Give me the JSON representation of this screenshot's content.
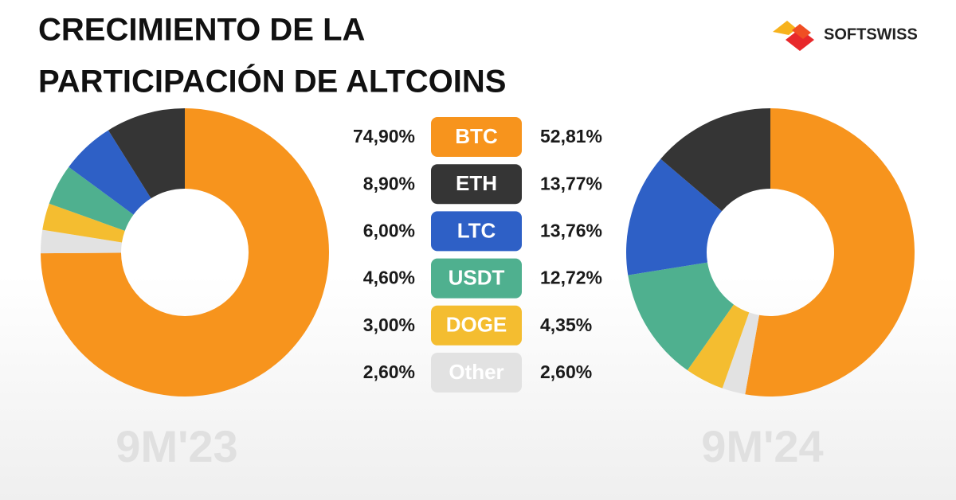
{
  "header": {
    "title_lines": [
      "CRECIMIENTO DE LA",
      "PARTICIPACIÓN DE ALTCOINS"
    ],
    "logo": "SOFTSWISS"
  },
  "chart_data": {
    "type": "donut",
    "categories": [
      "BTC",
      "ETH",
      "LTC",
      "USDT",
      "DOGE",
      "Other"
    ],
    "colors": [
      "#f7941d",
      "#353535",
      "#2e60c6",
      "#4fb08f",
      "#f4bd30",
      "#e2e2e2"
    ],
    "series": [
      {
        "name": "9M'23",
        "values": [
          74.9,
          8.9,
          6.0,
          4.6,
          3.0,
          2.6
        ],
        "value_labels": [
          "74,90%",
          "8,90%",
          "6,00%",
          "4,60%",
          "3,00%",
          "2,60%"
        ]
      },
      {
        "name": "9M'24",
        "values": [
          52.81,
          13.77,
          13.76,
          12.72,
          4.35,
          2.6
        ],
        "value_labels": [
          "52,81%",
          "13,77%",
          "13,76%",
          "12,72%",
          "4,35%",
          "2,60%"
        ]
      }
    ]
  }
}
